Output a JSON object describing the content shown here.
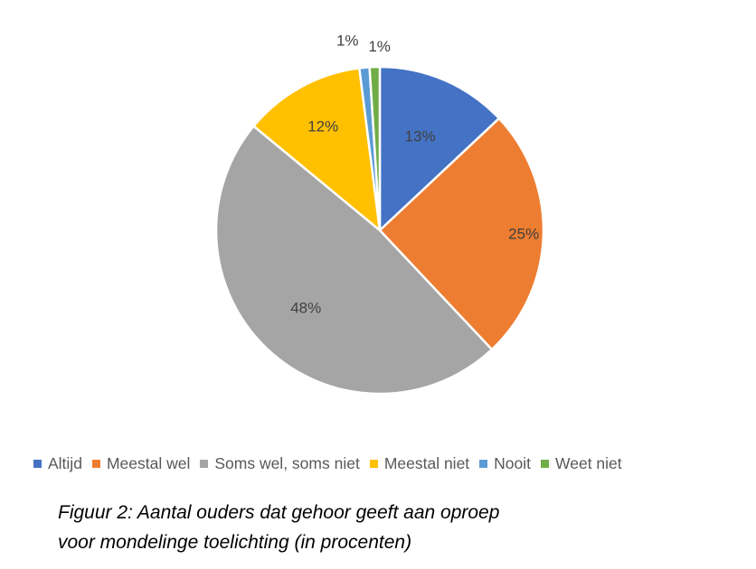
{
  "chart_data": {
    "type": "pie",
    "categories": [
      "Altijd",
      "Meestal wel",
      "Soms wel, soms niet",
      "Meestal niet",
      "Nooit",
      "Weet niet"
    ],
    "values": [
      13,
      25,
      48,
      12,
      1,
      1
    ],
    "labels": [
      "13%",
      "25%",
      "48%",
      "12%",
      "1%",
      "1%"
    ],
    "colors": [
      "#4472C4",
      "#ED7D31",
      "#A5A5A5",
      "#FFC000",
      "#5B9BD5",
      "#70AD47"
    ],
    "legend_position": "bottom",
    "start_angle": "top, clockwise"
  },
  "caption": {
    "line1": "Figuur 2: Aantal ouders dat gehoor geeft aan oproep",
    "line2": "voor mondelinge toelichting (in procenten)"
  }
}
